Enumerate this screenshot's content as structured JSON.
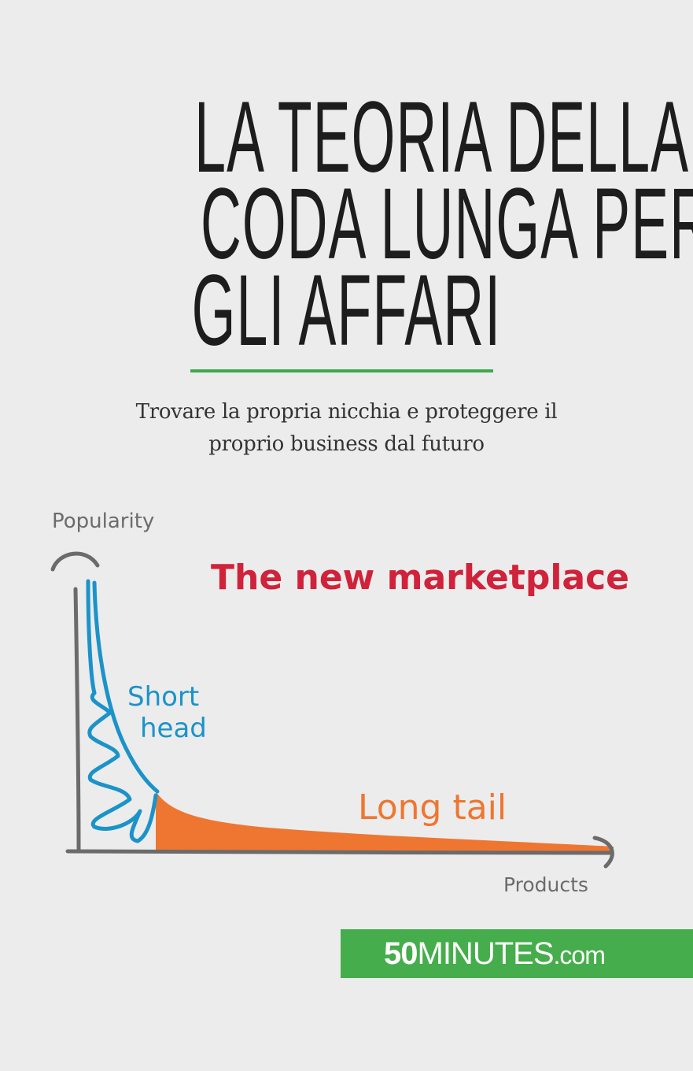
{
  "cover": {
    "title_lines": [
      "LA TEORIA DELLA",
      "CODA LUNGA PER",
      "GLI AFFARI"
    ],
    "subtitle_lines": [
      "Trovare la propria nicchia e proteggere il",
      "proprio business dal futuro"
    ],
    "accent_color": "#3fa94a"
  },
  "illustration": {
    "y_axis_label": "Popularity",
    "x_axis_label": "Products",
    "headline": "The new marketplace",
    "head_label_lines": [
      "Short",
      "head"
    ],
    "tail_label": "Long tail",
    "colors": {
      "headline": "#d0223a",
      "head": "#1b93c9",
      "tail": "#ef7630",
      "axis": "#6b6b6b"
    }
  },
  "publisher": {
    "logo_bold": "50",
    "logo_main": "MINUTES",
    "logo_domain": ".com",
    "logo_color": "#45ad4b"
  }
}
